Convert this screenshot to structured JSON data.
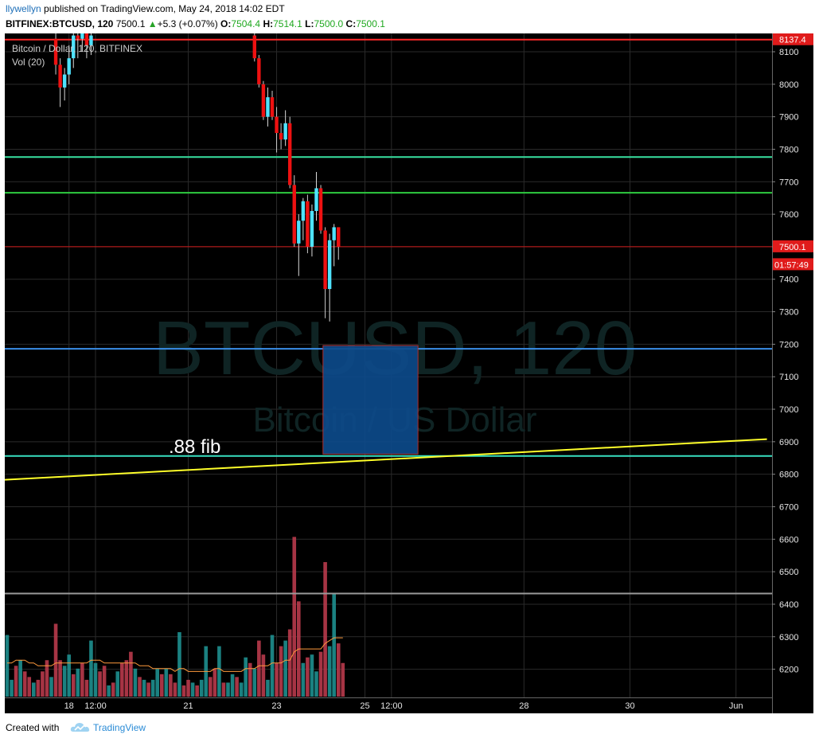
{
  "header": {
    "user": "llywellyn",
    "published_text": " published on TradingView.com, May 24, 2018 14:02 EDT",
    "symbol": "BITFINEX:BTCUSD, 120",
    "last": "7500.1",
    "arrow": "▲",
    "change": "+5.3 (+0.07%)",
    "o_label": "O:",
    "o_val": "7504.4",
    "h_label": "H:",
    "h_val": "7514.1",
    "l_label": "L:",
    "l_val": "7500.0",
    "c_label": "C:",
    "c_val": "7500.1"
  },
  "footer": {
    "created_with": "Created with",
    "brand": "TradingView"
  },
  "chart_data": {
    "type": "candlestick",
    "legend_line1": "Bitcoin / Dollar, 120, BITFINEX",
    "legend_line2": "Vol (20)",
    "watermark_line1": "BTCUSD, 120",
    "watermark_line2": "Bitcoin / US Dollar",
    "annotation_text": ".88 fib",
    "ylim": [
      6100,
      8150
    ],
    "y_ticks": [
      8100,
      8000,
      7900,
      7800,
      7700,
      7600,
      7500,
      7400,
      7300,
      7200,
      7100,
      7000,
      6900,
      6800,
      6700,
      6600,
      6500,
      6400,
      6300,
      6200
    ],
    "x_ticks": [
      {
        "label": "18",
        "t": 14
      },
      {
        "label": "12:00",
        "t": 20
      },
      {
        "label": "21",
        "t": 41
      },
      {
        "label": "23",
        "t": 61
      },
      {
        "label": "25",
        "t": 81
      },
      {
        "label": "12:00",
        "t": 87
      },
      {
        "label": "28",
        "t": 117
      },
      {
        "label": "30",
        "t": 141
      },
      {
        "label": "Jun",
        "t": 165
      }
    ],
    "horizontal_lines": [
      {
        "price": 8137.4,
        "color": "#ff2a2a",
        "label": "8137.4"
      },
      {
        "price": 7776,
        "color": "#38e0a0"
      },
      {
        "price": 7666,
        "color": "#2ecc40"
      },
      {
        "price": 7500.1,
        "color": "#d01a1a"
      },
      {
        "price": 7186,
        "color": "#3a8ee8"
      },
      {
        "price": 6856,
        "color": "#38e0c0"
      },
      {
        "price": 6433,
        "color": "#9a9a9a"
      }
    ],
    "price_labels": [
      {
        "text": "7500.1",
        "price": 7500.1
      },
      {
        "text": "01:57:49",
        "price": 7445
      }
    ],
    "trendline": {
      "t1": 0,
      "p1": 6783,
      "t2": 172,
      "p2": 6908,
      "color": "#ffff2a"
    },
    "box": {
      "t1": 71.5,
      "t2": 93,
      "p1": 7196,
      "p2": 6862,
      "fill": "#0d4a8a",
      "edge": "#c03030"
    },
    "candles": [
      {
        "t": 11,
        "o": 8140,
        "h": 8160,
        "l": 8030,
        "c": 8060
      },
      {
        "t": 12,
        "o": 8060,
        "h": 8080,
        "l": 7930,
        "c": 7990
      },
      {
        "t": 13,
        "o": 7990,
        "h": 8050,
        "l": 7950,
        "c": 8030
      },
      {
        "t": 14,
        "o": 8030,
        "h": 8120,
        "l": 8000,
        "c": 8080
      },
      {
        "t": 15,
        "o": 8080,
        "h": 8160,
        "l": 8050,
        "c": 8150
      },
      {
        "t": 16,
        "o": 8150,
        "h": 8170,
        "l": 8080,
        "c": 8140
      },
      {
        "t": 17,
        "o": 8140,
        "h": 8180,
        "l": 8100,
        "c": 8160
      },
      {
        "t": 18,
        "o": 8160,
        "h": 8180,
        "l": 8080,
        "c": 8120
      },
      {
        "t": 19,
        "o": 8120,
        "h": 8170,
        "l": 8090,
        "c": 8150
      },
      {
        "t": 56,
        "o": 8150,
        "h": 8170,
        "l": 8070,
        "c": 8080
      },
      {
        "t": 57,
        "o": 8080,
        "h": 8090,
        "l": 7990,
        "c": 8000
      },
      {
        "t": 58,
        "o": 8000,
        "h": 8010,
        "l": 7890,
        "c": 7900
      },
      {
        "t": 59,
        "o": 7900,
        "h": 7990,
        "l": 7870,
        "c": 7960
      },
      {
        "t": 60,
        "o": 7960,
        "h": 7980,
        "l": 7890,
        "c": 7900
      },
      {
        "t": 61,
        "o": 7900,
        "h": 7930,
        "l": 7790,
        "c": 7850
      },
      {
        "t": 62,
        "o": 7850,
        "h": 7880,
        "l": 7800,
        "c": 7830
      },
      {
        "t": 63,
        "o": 7830,
        "h": 7920,
        "l": 7810,
        "c": 7880
      },
      {
        "t": 64,
        "o": 7880,
        "h": 7900,
        "l": 7680,
        "c": 7690
      },
      {
        "t": 65,
        "o": 7690,
        "h": 7720,
        "l": 7500,
        "c": 7510
      },
      {
        "t": 66,
        "o": 7510,
        "h": 7600,
        "l": 7410,
        "c": 7580
      },
      {
        "t": 67,
        "o": 7580,
        "h": 7650,
        "l": 7520,
        "c": 7640
      },
      {
        "t": 68,
        "o": 7640,
        "h": 7660,
        "l": 7480,
        "c": 7500
      },
      {
        "t": 69,
        "o": 7500,
        "h": 7630,
        "l": 7470,
        "c": 7610
      },
      {
        "t": 70,
        "o": 7610,
        "h": 7730,
        "l": 7580,
        "c": 7680
      },
      {
        "t": 71,
        "o": 7680,
        "h": 7690,
        "l": 7540,
        "c": 7550
      },
      {
        "t": 72,
        "o": 7550,
        "h": 7560,
        "l": 7280,
        "c": 7370
      },
      {
        "t": 73,
        "o": 7370,
        "h": 7540,
        "l": 7270,
        "c": 7520
      },
      {
        "t": 74,
        "o": 7520,
        "h": 7570,
        "l": 7440,
        "c": 7560
      },
      {
        "t": 75,
        "o": 7560,
        "h": 7560,
        "l": 7460,
        "c": 7500
      }
    ],
    "volume": {
      "ylim_max": 60,
      "bars": [
        {
          "t": 0,
          "v": 22,
          "up": true
        },
        {
          "t": 1,
          "v": 6,
          "up": true
        },
        {
          "t": 2,
          "v": 11,
          "up": false
        },
        {
          "t": 3,
          "v": 13,
          "up": true
        },
        {
          "t": 4,
          "v": 9,
          "up": false
        },
        {
          "t": 5,
          "v": 7,
          "up": false
        },
        {
          "t": 6,
          "v": 5,
          "up": true
        },
        {
          "t": 7,
          "v": 6,
          "up": false
        },
        {
          "t": 8,
          "v": 9,
          "up": false
        },
        {
          "t": 9,
          "v": 13,
          "up": false
        },
        {
          "t": 10,
          "v": 7,
          "up": true
        },
        {
          "t": 11,
          "v": 26,
          "up": false
        },
        {
          "t": 12,
          "v": 13,
          "up": false
        },
        {
          "t": 13,
          "v": 11,
          "up": true
        },
        {
          "t": 14,
          "v": 15,
          "up": true
        },
        {
          "t": 15,
          "v": 8,
          "up": false
        },
        {
          "t": 16,
          "v": 10,
          "up": true
        },
        {
          "t": 17,
          "v": 12,
          "up": false
        },
        {
          "t": 18,
          "v": 6,
          "up": false
        },
        {
          "t": 19,
          "v": 20,
          "up": true
        },
        {
          "t": 20,
          "v": 12,
          "up": true
        },
        {
          "t": 21,
          "v": 9,
          "up": false
        },
        {
          "t": 22,
          "v": 11,
          "up": false
        },
        {
          "t": 23,
          "v": 4,
          "up": true
        },
        {
          "t": 24,
          "v": 5,
          "up": false
        },
        {
          "t": 25,
          "v": 9,
          "up": true
        },
        {
          "t": 26,
          "v": 12,
          "up": false
        },
        {
          "t": 27,
          "v": 13,
          "up": false
        },
        {
          "t": 28,
          "v": 16,
          "up": false
        },
        {
          "t": 29,
          "v": 10,
          "up": true
        },
        {
          "t": 30,
          "v": 7,
          "up": false
        },
        {
          "t": 31,
          "v": 6,
          "up": true
        },
        {
          "t": 32,
          "v": 5,
          "up": false
        },
        {
          "t": 33,
          "v": 6,
          "up": true
        },
        {
          "t": 34,
          "v": 10,
          "up": true
        },
        {
          "t": 35,
          "v": 8,
          "up": false
        },
        {
          "t": 36,
          "v": 10,
          "up": true
        },
        {
          "t": 37,
          "v": 8,
          "up": false
        },
        {
          "t": 38,
          "v": 5,
          "up": false
        },
        {
          "t": 39,
          "v": 23,
          "up": true
        },
        {
          "t": 40,
          "v": 4,
          "up": false
        },
        {
          "t": 41,
          "v": 6,
          "up": false
        },
        {
          "t": 42,
          "v": 5,
          "up": true
        },
        {
          "t": 43,
          "v": 4,
          "up": false
        },
        {
          "t": 44,
          "v": 6,
          "up": true
        },
        {
          "t": 45,
          "v": 18,
          "up": true
        },
        {
          "t": 46,
          "v": 7,
          "up": false
        },
        {
          "t": 47,
          "v": 10,
          "up": false
        },
        {
          "t": 48,
          "v": 18,
          "up": true
        },
        {
          "t": 49,
          "v": 5,
          "up": false
        },
        {
          "t": 50,
          "v": 5,
          "up": true
        },
        {
          "t": 51,
          "v": 8,
          "up": true
        },
        {
          "t": 52,
          "v": 7,
          "up": false
        },
        {
          "t": 53,
          "v": 5,
          "up": true
        },
        {
          "t": 54,
          "v": 14,
          "up": true
        },
        {
          "t": 55,
          "v": 12,
          "up": false
        },
        {
          "t": 56,
          "v": 10,
          "up": true
        },
        {
          "t": 57,
          "v": 20,
          "up": false
        },
        {
          "t": 58,
          "v": 15,
          "up": false
        },
        {
          "t": 59,
          "v": 6,
          "up": true
        },
        {
          "t": 60,
          "v": 22,
          "up": true
        },
        {
          "t": 61,
          "v": 12,
          "up": false
        },
        {
          "t": 62,
          "v": 18,
          "up": false
        },
        {
          "t": 63,
          "v": 20,
          "up": true
        },
        {
          "t": 64,
          "v": 24,
          "up": false
        },
        {
          "t": 65,
          "v": 57,
          "up": false
        },
        {
          "t": 66,
          "v": 34,
          "up": false
        },
        {
          "t": 67,
          "v": 12,
          "up": true
        },
        {
          "t": 68,
          "v": 14,
          "up": false
        },
        {
          "t": 69,
          "v": 15,
          "up": true
        },
        {
          "t": 70,
          "v": 9,
          "up": true
        },
        {
          "t": 71,
          "v": 16,
          "up": false
        },
        {
          "t": 72,
          "v": 48,
          "up": false
        },
        {
          "t": 73,
          "v": 18,
          "up": true
        },
        {
          "t": 74,
          "v": 37,
          "up": true
        },
        {
          "t": 75,
          "v": 19,
          "up": false
        },
        {
          "t": 76,
          "v": 12,
          "up": false
        }
      ],
      "ma": [
        12,
        12,
        13,
        13,
        13,
        12,
        12,
        11,
        11,
        11,
        11,
        12,
        12,
        12,
        12,
        12,
        12,
        12,
        12,
        13,
        13,
        13,
        12,
        12,
        12,
        12,
        12,
        12,
        12,
        12,
        11,
        11,
        11,
        10,
        10,
        10,
        10,
        10,
        9,
        10,
        10,
        9,
        9,
        9,
        9,
        9,
        9,
        10,
        10,
        9,
        9,
        9,
        9,
        9,
        10,
        10,
        10,
        11,
        11,
        11,
        12,
        12,
        12,
        13,
        13,
        16,
        17,
        17,
        17,
        17,
        17,
        17,
        19,
        20,
        21,
        21,
        21
      ]
    }
  }
}
